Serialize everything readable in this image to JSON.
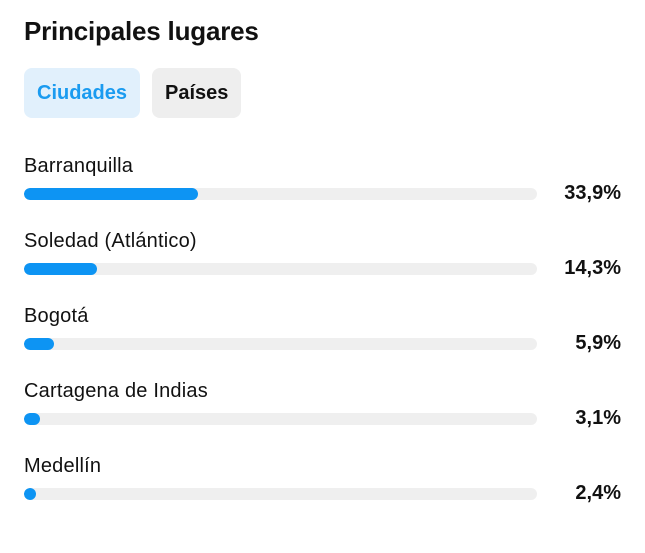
{
  "header": {
    "title": "Principales lugares"
  },
  "tabs": [
    {
      "label": "Ciudades",
      "active": true
    },
    {
      "label": "Países",
      "active": false
    }
  ],
  "rows": [
    {
      "label": "Barranquilla",
      "value_text": "33,9%",
      "fraction": 0.339
    },
    {
      "label": "Soledad (Atlántico)",
      "value_text": "14,3%",
      "fraction": 0.143
    },
    {
      "label": "Bogotá",
      "value_text": "5,9%",
      "fraction": 0.059
    },
    {
      "label": "Cartagena de Indias",
      "value_text": "3,1%",
      "fraction": 0.031
    },
    {
      "label": "Medellín",
      "value_text": "2,4%",
      "fraction": 0.024
    }
  ],
  "colors": {
    "accent": "#1a9bf0",
    "bar_fill": "#0d94f3",
    "bar_track": "#efefef",
    "active_tab_bg": "#e1f0fc",
    "inactive_tab_bg": "#eeeeee"
  }
}
